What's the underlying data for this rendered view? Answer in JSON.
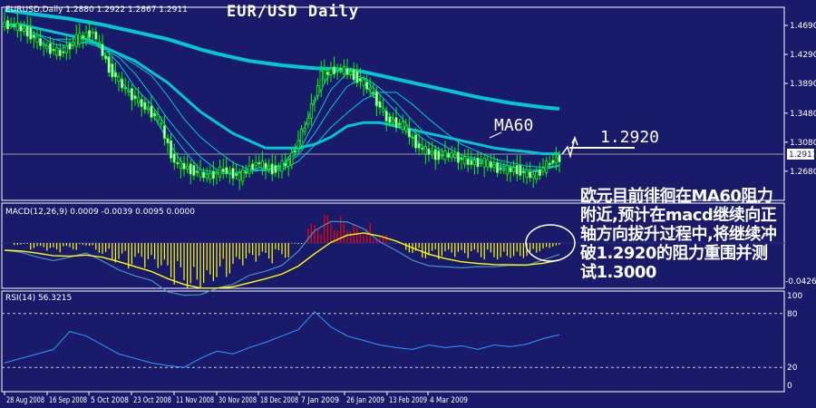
{
  "symbol_header": "EURUSD,Daily  1.2880 1.2922 1.2867 1.2911",
  "overlay_title": "EUR/USD Daily",
  "macd_header": "MACD(12,26,9) 0.0009 -0.0039 0.0095 0.0000",
  "rsi_header": "RSI(14) 56.3215",
  "annotation_level": "1.2920",
  "ma_label": "MA60",
  "commentary": "欧元目前徘徊在MA60阻力附近,预计在macd继续向正轴方向拔升过程中,将继续冲破1.2920的阻力重围并测试1.3000",
  "colors": {
    "background": "#1a1a6b",
    "candle": "#00ff00",
    "ma": "#00c8d2",
    "macd_pos": "#ff0000",
    "macd_neg": "#ffff00",
    "signal": "#ffff00",
    "rsi": "#3399ff"
  },
  "chart_data": [
    {
      "type": "candlestick",
      "title": "EUR/USD Daily",
      "x_ticks": [
        "28 Aug 2008",
        "16 Sep 2008",
        "5 Oct 2008",
        "23 Oct 2008",
        "11 Nov 2008",
        "30 Nov 2008",
        "18 Dec 2008",
        "7 Jan 2009",
        "26 Jan 2009",
        "13 Feb 2009",
        "4 Mar 2009"
      ],
      "y_ticks": [
        1.469,
        1.429,
        1.389,
        1.348,
        1.308,
        1.268
      ],
      "current_price": 1.2911,
      "ylim": [
        1.245,
        1.494
      ],
      "weekly_close": [
        1.47,
        1.46,
        1.44,
        1.43,
        1.45,
        1.46,
        1.41,
        1.38,
        1.36,
        1.34,
        1.28,
        1.27,
        1.26,
        1.27,
        1.26,
        1.28,
        1.27,
        1.28,
        1.33,
        1.4,
        1.41,
        1.4,
        1.38,
        1.34,
        1.33,
        1.3,
        1.29,
        1.29,
        1.28,
        1.28,
        1.27,
        1.27,
        1.26,
        1.28,
        1.2911
      ],
      "series": [
        {
          "name": "MA60",
          "values": [
            1.47,
            1.47,
            1.465,
            1.46,
            1.455,
            1.45,
            1.44,
            1.43,
            1.42,
            1.405,
            1.39,
            1.37,
            1.35,
            1.335,
            1.32,
            1.31,
            1.3,
            1.3,
            1.3,
            1.305,
            1.315,
            1.33,
            1.335,
            1.335,
            1.33,
            1.325,
            1.32,
            1.315,
            1.31,
            1.305,
            1.3,
            1.297,
            1.295,
            1.292,
            1.292
          ]
        },
        {
          "values": [
            1.49,
            1.487,
            1.484,
            1.481,
            1.478,
            1.474,
            1.47,
            1.465,
            1.46,
            1.455,
            1.45,
            1.443,
            1.436,
            1.43,
            1.425,
            1.42,
            1.417,
            1.414,
            1.412,
            1.41,
            1.409,
            1.408,
            1.405,
            1.4,
            1.395,
            1.39,
            1.385,
            1.38,
            1.375,
            1.37,
            1.366,
            1.362,
            1.359,
            1.356,
            1.354
          ]
        }
      ]
    },
    {
      "type": "bar",
      "title": "MACD(12,26,9)",
      "y_ticks": [
        -0.0426
      ],
      "values": {
        "main": 0.0009,
        "signal": -0.0039,
        "extra": [
          0.0095,
          0.0
        ]
      }
    },
    {
      "type": "line",
      "title": "RSI(14)",
      "y_ticks": [
        100,
        80,
        20,
        0
      ],
      "ylim": [
        0,
        100
      ],
      "values": [
        25,
        30,
        35,
        40,
        60,
        55,
        45,
        35,
        30,
        25,
        22,
        20,
        30,
        38,
        35,
        42,
        48,
        55,
        62,
        82,
        65,
        55,
        50,
        45,
        42,
        40,
        45,
        42,
        44,
        40,
        45,
        43,
        46,
        52,
        56.32
      ]
    }
  ]
}
